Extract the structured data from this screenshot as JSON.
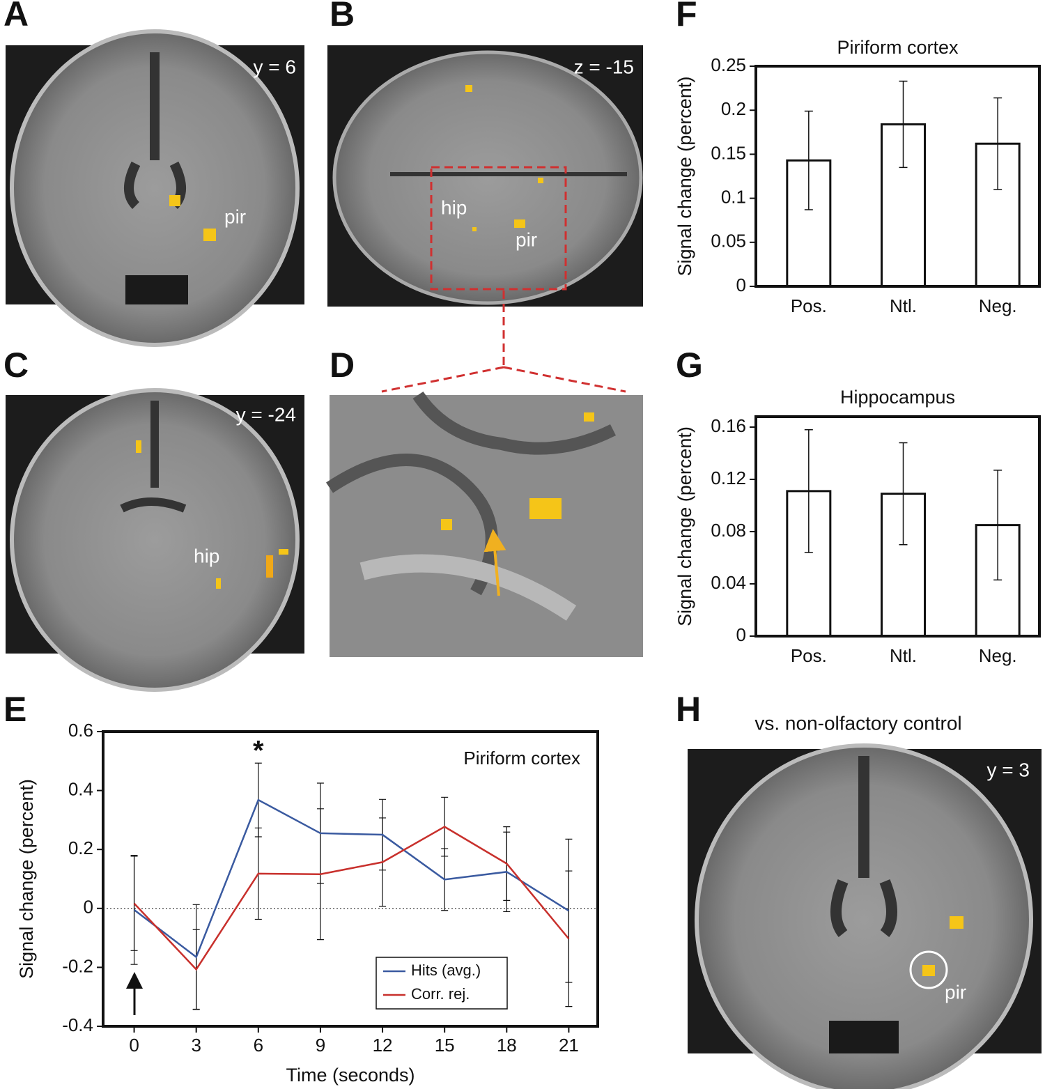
{
  "panel_labels": [
    "A",
    "B",
    "C",
    "D",
    "E",
    "F",
    "G",
    "H"
  ],
  "images": [
    {
      "label": "y = 6",
      "regions": [
        "pir"
      ]
    },
    {
      "label": "z = -15",
      "regions": [
        "hip",
        "pir"
      ]
    },
    {
      "label": "y = -24",
      "regions": [
        "hip"
      ]
    },
    {
      "title": "vs. non-olfactory control",
      "label": "y = 3",
      "regions": [
        "pir"
      ]
    }
  ],
  "chart_data": [
    {
      "type": "bar",
      "title": "Piriform cortex",
      "ylabel": "Signal change (percent)",
      "categories": [
        "Pos.",
        "Ntl.",
        "Neg."
      ],
      "values": [
        0.143,
        0.184,
        0.162
      ],
      "errors": [
        0.056,
        0.049,
        0.052
      ],
      "color": "#ffffff",
      "ylim": [
        0,
        0.25
      ],
      "yticks": [
        0,
        0.05,
        0.1,
        0.15,
        0.2,
        0.25
      ]
    },
    {
      "type": "bar",
      "title": "Hippocampus",
      "ylabel": "Signal change (percent)",
      "categories": [
        "Pos.",
        "Ntl.",
        "Neg."
      ],
      "values": [
        0.111,
        0.109,
        0.085
      ],
      "errors": [
        0.047,
        0.039,
        0.042
      ],
      "color": "#ffffff",
      "ylim": [
        0,
        0.168
      ],
      "yticks": [
        0,
        0.04,
        0.08,
        0.12,
        0.16
      ]
    },
    {
      "type": "line",
      "xlabel": "Time (seconds)",
      "ylabel": "Signal change (percent)",
      "annotations": [
        "*",
        "Piriform cortex"
      ],
      "x": [
        0,
        3,
        6,
        9,
        12,
        15,
        18,
        21
      ],
      "xlim": [
        -1.5,
        22.4
      ],
      "xticks": [
        0,
        3,
        6,
        9,
        12,
        15,
        18,
        21
      ],
      "ylim": [
        -0.4,
        0.6
      ],
      "yticks": [
        -0.4,
        -0.2,
        0,
        0.2,
        0.4,
        0.6
      ],
      "legend": "lower right",
      "series": [
        {
          "name": "Hits (avg.)",
          "color": "#3a5aa0",
          "values": [
            -0.005,
            -0.165,
            0.368,
            0.255,
            0.25,
            0.098,
            0.124,
            -0.008
          ],
          "errors": [
            0.185,
            0.178,
            0.125,
            0.17,
            0.12,
            0.105,
            0.135,
            0.243
          ]
        },
        {
          "name": "Corr. rej.",
          "color": "#c8302c",
          "values": [
            0.017,
            -0.207,
            0.118,
            0.116,
            0.157,
            0.277,
            0.152,
            -0.103
          ],
          "errors": [
            0.16,
            0.135,
            0.155,
            0.222,
            0.15,
            0.1,
            0.125,
            0.23
          ]
        }
      ]
    }
  ]
}
